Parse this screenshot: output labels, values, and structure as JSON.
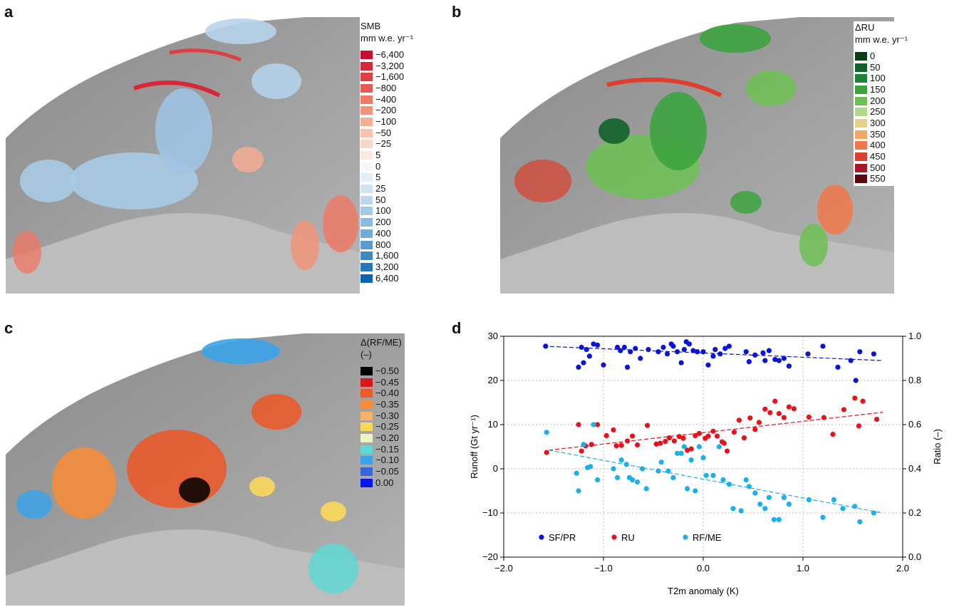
{
  "panels": {
    "a": {
      "label": "a",
      "legend_title": "SMB",
      "legend_unit": "mm w.e. yr⁻¹",
      "legend": [
        {
          "label": "−6,400",
          "color": "#c8102e"
        },
        {
          "label": "−3,200",
          "color": "#d62839"
        },
        {
          "label": "−1,600",
          "color": "#de3f45"
        },
        {
          "label": "−800",
          "color": "#e55b55"
        },
        {
          "label": "−400",
          "color": "#ec7a66"
        },
        {
          "label": "−200",
          "color": "#f19479"
        },
        {
          "label": "−100",
          "color": "#f5ad93"
        },
        {
          "label": "−50",
          "color": "#f8c4b0"
        },
        {
          "label": "−25",
          "color": "#fad7cb"
        },
        {
          "label": "5",
          "color": "#fbe9e4"
        },
        {
          "label": "0",
          "color": "#f7f7f7"
        },
        {
          "label": "5",
          "color": "#e4eef6"
        },
        {
          "label": "25",
          "color": "#d2e3f0"
        },
        {
          "label": "50",
          "color": "#bdd7ec"
        },
        {
          "label": "100",
          "color": "#a6cae6"
        },
        {
          "label": "200",
          "color": "#8dbbdf"
        },
        {
          "label": "400",
          "color": "#74abd6"
        },
        {
          "label": "800",
          "color": "#5a9acc"
        },
        {
          "label": "1,600",
          "color": "#3f88c2"
        },
        {
          "label": "3,200",
          "color": "#2676b8"
        },
        {
          "label": "6,400",
          "color": "#0d63ad"
        }
      ]
    },
    "b": {
      "label": "b",
      "legend_title": "ΔRU",
      "legend_unit": "mm w.e. yr⁻¹",
      "legend": [
        {
          "label": "0",
          "color": "#0b3d16"
        },
        {
          "label": "50",
          "color": "#11632a"
        },
        {
          "label": "100",
          "color": "#1d8236"
        },
        {
          "label": "150",
          "color": "#3da33f"
        },
        {
          "label": "200",
          "color": "#6fbf55"
        },
        {
          "label": "250",
          "color": "#b0d98a"
        },
        {
          "label": "300",
          "color": "#e6cf8a"
        },
        {
          "label": "350",
          "color": "#f4a866"
        },
        {
          "label": "400",
          "color": "#f0784a"
        },
        {
          "label": "450",
          "color": "#dd3e2d"
        },
        {
          "label": "500",
          "color": "#a81726"
        },
        {
          "label": "550",
          "color": "#5c0a0f"
        }
      ]
    },
    "c": {
      "label": "c",
      "legend_title": "Δ(RF/ME)",
      "legend_unit": "(–)",
      "legend": [
        {
          "label": "−0.50",
          "color": "#000000"
        },
        {
          "label": "−0.45",
          "color": "#d7191c"
        },
        {
          "label": "−0.40",
          "color": "#ea5a2b"
        },
        {
          "label": "−0.35",
          "color": "#f48c3c"
        },
        {
          "label": "−0.30",
          "color": "#f8b36a"
        },
        {
          "label": "−0.25",
          "color": "#fbd85a"
        },
        {
          "label": "−0.20",
          "color": "#eef5c0"
        },
        {
          "label": "−0.15",
          "color": "#5fd7d2"
        },
        {
          "label": "−0.10",
          "color": "#3ba3e8"
        },
        {
          "label": "−0.05",
          "color": "#3467d8"
        },
        {
          "label": "0.00",
          "color": "#0a14e8"
        }
      ]
    },
    "d": {
      "label": "d"
    }
  },
  "chart_data": {
    "type": "scatter",
    "xlabel": "T2m anomaly (K)",
    "ylabel_left": "Runoff (Gt yr⁻¹)",
    "ylabel_right": "Ratio (–)",
    "xlim": [
      -2.0,
      2.0
    ],
    "ylim_left": [
      -20,
      30
    ],
    "ylim_right": [
      0.0,
      1.0
    ],
    "xticks": [
      -2.0,
      -1.0,
      0.0,
      1.0,
      2.0
    ],
    "xtick_labels": [
      "−2.0",
      "−1.0",
      "0.0",
      "1.0",
      "2.0"
    ],
    "yticks_left": [
      -20,
      -10,
      0,
      10,
      20,
      30
    ],
    "ytick_labels_left": [
      "−20",
      "−10",
      "0",
      "10",
      "20",
      "30"
    ],
    "yticks_right": [
      0.0,
      0.2,
      0.4,
      0.6,
      0.8,
      1.0
    ],
    "ytick_labels_right": [
      "0.0",
      "0.2",
      "0.4",
      "0.6",
      "0.8",
      "1.0"
    ],
    "grid": true,
    "legend_position": "bottom-left",
    "series": [
      {
        "name": "SF/PR",
        "axis": "right",
        "color": "#0a14d6",
        "trend": [
          [
            -1.6,
            0.955
          ],
          [
            1.8,
            0.89
          ]
        ],
        "points": [
          [
            -1.58,
            0.955
          ],
          [
            -1.25,
            0.86
          ],
          [
            -1.22,
            0.95
          ],
          [
            -1.2,
            0.88
          ],
          [
            -1.17,
            0.94
          ],
          [
            -1.14,
            0.91
          ],
          [
            -1.1,
            0.965
          ],
          [
            -1.06,
            0.96
          ],
          [
            -1.0,
            0.87
          ],
          [
            -0.86,
            0.95
          ],
          [
            -0.83,
            0.935
          ],
          [
            -0.79,
            0.95
          ],
          [
            -0.76,
            0.86
          ],
          [
            -0.73,
            0.93
          ],
          [
            -0.68,
            0.945
          ],
          [
            -0.63,
            0.9
          ],
          [
            -0.55,
            0.94
          ],
          [
            -0.45,
            0.93
          ],
          [
            -0.4,
            0.95
          ],
          [
            -0.36,
            0.92
          ],
          [
            -0.32,
            0.965
          ],
          [
            -0.3,
            0.955
          ],
          [
            -0.26,
            0.93
          ],
          [
            -0.22,
            0.88
          ],
          [
            -0.19,
            0.94
          ],
          [
            -0.17,
            0.975
          ],
          [
            -0.14,
            0.965
          ],
          [
            -0.1,
            0.935
          ],
          [
            -0.06,
            0.93
          ],
          [
            0.0,
            0.93
          ],
          [
            0.05,
            0.87
          ],
          [
            0.1,
            0.91
          ],
          [
            0.12,
            0.94
          ],
          [
            0.17,
            0.92
          ],
          [
            0.22,
            0.945
          ],
          [
            0.26,
            0.955
          ],
          [
            0.43,
            0.93
          ],
          [
            0.46,
            0.885
          ],
          [
            0.52,
            0.915
          ],
          [
            0.6,
            0.925
          ],
          [
            0.62,
            0.89
          ],
          [
            0.66,
            0.935
          ],
          [
            0.72,
            0.895
          ],
          [
            0.76,
            0.89
          ],
          [
            0.81,
            0.9
          ],
          [
            0.86,
            0.865
          ],
          [
            1.05,
            0.92
          ],
          [
            1.2,
            0.955
          ],
          [
            1.35,
            0.86
          ],
          [
            1.48,
            0.89
          ],
          [
            1.53,
            0.8
          ],
          [
            1.57,
            0.93
          ],
          [
            1.71,
            0.92
          ]
        ]
      },
      {
        "name": "RU",
        "axis": "left",
        "color": "#e8121c",
        "trend": [
          [
            -1.55,
            4.2
          ],
          [
            1.8,
            12.8
          ]
        ],
        "points": [
          [
            -1.57,
            3.7
          ],
          [
            -1.25,
            10.0
          ],
          [
            -1.22,
            4.0
          ],
          [
            -1.18,
            5.2
          ],
          [
            -1.12,
            5.5
          ],
          [
            -1.06,
            10.0
          ],
          [
            -0.97,
            7.5
          ],
          [
            -0.9,
            8.8
          ],
          [
            -0.87,
            5.2
          ],
          [
            -0.82,
            5.3
          ],
          [
            -0.76,
            6.3
          ],
          [
            -0.71,
            7.4
          ],
          [
            -0.66,
            5.4
          ],
          [
            -0.56,
            9.8
          ],
          [
            -0.47,
            5.6
          ],
          [
            -0.43,
            5.8
          ],
          [
            -0.38,
            6.2
          ],
          [
            -0.34,
            7.0
          ],
          [
            -0.29,
            6.3
          ],
          [
            -0.24,
            7.3
          ],
          [
            -0.2,
            6.9
          ],
          [
            -0.16,
            4.2
          ],
          [
            -0.12,
            4.5
          ],
          [
            -0.08,
            7.5
          ],
          [
            -0.04,
            8.0
          ],
          [
            0.02,
            6.9
          ],
          [
            0.05,
            7.4
          ],
          [
            0.1,
            8.5
          ],
          [
            0.14,
            7.4
          ],
          [
            0.19,
            6.1
          ],
          [
            0.21,
            5.8
          ],
          [
            0.24,
            4.0
          ],
          [
            0.31,
            8.3
          ],
          [
            0.36,
            11.0
          ],
          [
            0.41,
            7.0
          ],
          [
            0.47,
            11.5
          ],
          [
            0.52,
            8.9
          ],
          [
            0.56,
            10.5
          ],
          [
            0.62,
            13.5
          ],
          [
            0.67,
            12.7
          ],
          [
            0.72,
            15.3
          ],
          [
            0.76,
            12.5
          ],
          [
            0.81,
            11.6
          ],
          [
            0.86,
            14.0
          ],
          [
            0.91,
            13.6
          ],
          [
            1.06,
            11.7
          ],
          [
            1.21,
            11.6
          ],
          [
            1.3,
            7.8
          ],
          [
            1.41,
            13.4
          ],
          [
            1.52,
            16.0
          ],
          [
            1.56,
            9.7
          ],
          [
            1.6,
            15.3
          ],
          [
            1.74,
            11.2
          ]
        ]
      },
      {
        "name": "RF/ME",
        "axis": "right",
        "color": "#1ab1e8",
        "trend": [
          [
            -1.55,
            0.485
          ],
          [
            1.8,
            0.2
          ]
        ],
        "points": [
          [
            -1.57,
            0.565
          ],
          [
            -1.27,
            0.38
          ],
          [
            -1.25,
            0.3
          ],
          [
            -1.2,
            0.51
          ],
          [
            -1.16,
            0.405
          ],
          [
            -1.13,
            0.41
          ],
          [
            -1.1,
            0.6
          ],
          [
            -1.06,
            0.35
          ],
          [
            -0.9,
            0.4
          ],
          [
            -0.86,
            0.36
          ],
          [
            -0.82,
            0.44
          ],
          [
            -0.77,
            0.42
          ],
          [
            -0.74,
            0.36
          ],
          [
            -0.71,
            0.35
          ],
          [
            -0.66,
            0.34
          ],
          [
            -0.61,
            0.4
          ],
          [
            -0.57,
            0.31
          ],
          [
            -0.45,
            0.39
          ],
          [
            -0.42,
            0.43
          ],
          [
            -0.35,
            0.39
          ],
          [
            -0.3,
            0.36
          ],
          [
            -0.26,
            0.47
          ],
          [
            -0.22,
            0.47
          ],
          [
            -0.19,
            0.5
          ],
          [
            -0.16,
            0.31
          ],
          [
            -0.12,
            0.44
          ],
          [
            -0.08,
            0.3
          ],
          [
            -0.04,
            0.5
          ],
          [
            0.0,
            0.45
          ],
          [
            0.03,
            0.37
          ],
          [
            0.1,
            0.37
          ],
          [
            0.16,
            0.5
          ],
          [
            0.2,
            0.35
          ],
          [
            0.26,
            0.33
          ],
          [
            0.3,
            0.22
          ],
          [
            0.38,
            0.21
          ],
          [
            0.43,
            0.35
          ],
          [
            0.46,
            0.32
          ],
          [
            0.52,
            0.29
          ],
          [
            0.57,
            0.24
          ],
          [
            0.62,
            0.22
          ],
          [
            0.66,
            0.27
          ],
          [
            0.71,
            0.17
          ],
          [
            0.76,
            0.17
          ],
          [
            0.81,
            0.27
          ],
          [
            0.86,
            0.24
          ],
          [
            1.06,
            0.26
          ],
          [
            1.2,
            0.18
          ],
          [
            1.31,
            0.26
          ],
          [
            1.4,
            0.22
          ],
          [
            1.52,
            0.23
          ],
          [
            1.57,
            0.16
          ],
          [
            1.71,
            0.2
          ]
        ]
      }
    ]
  }
}
